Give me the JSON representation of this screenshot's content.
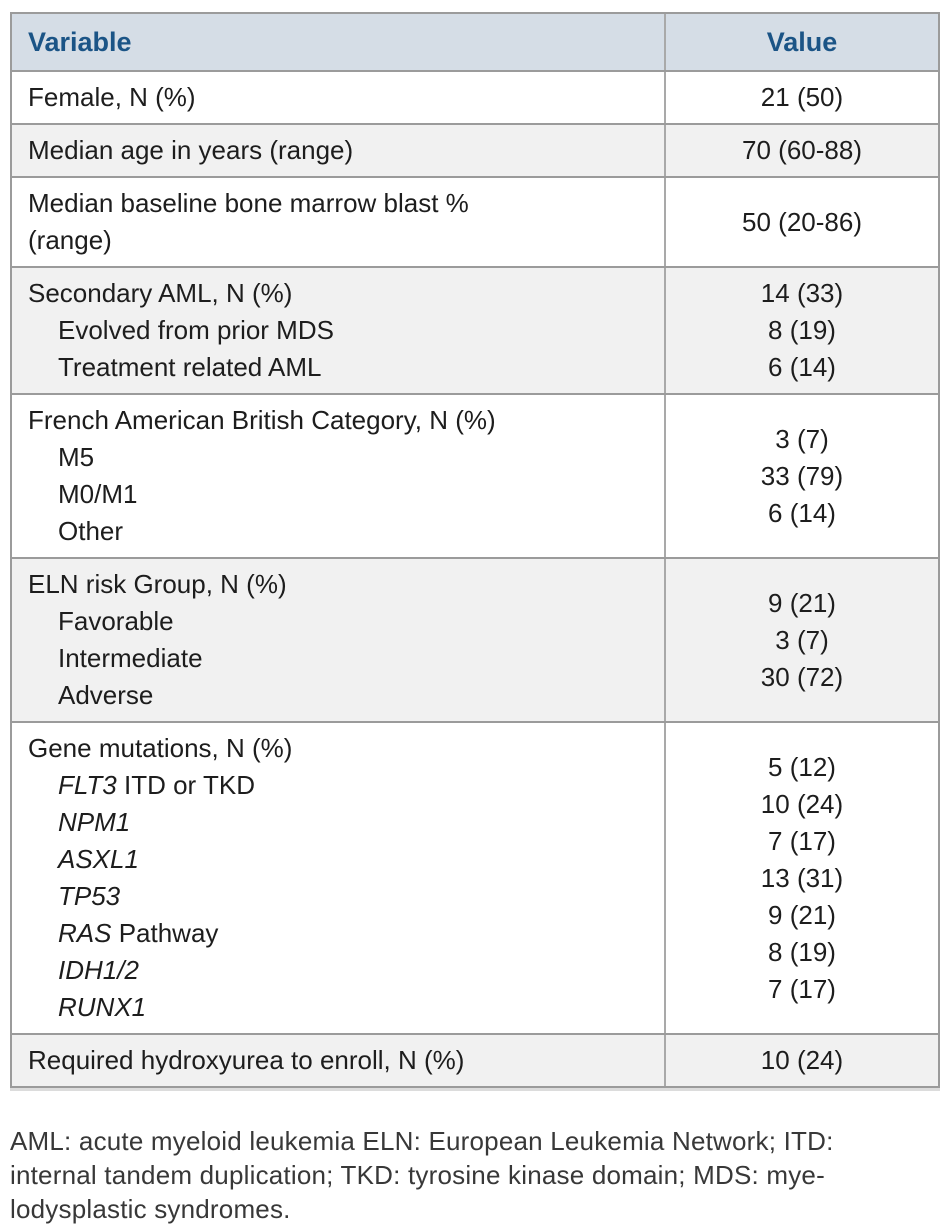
{
  "page": {
    "background": "#ffffff"
  },
  "table": {
    "header": {
      "variable": "Variable",
      "value": "Value"
    },
    "colors": {
      "header_bg": "#d5dde6",
      "header_text": "#1b5486",
      "row_bg": "#ffffff",
      "row_alt_bg": "#f1f1f1",
      "border": "#9b9b9b",
      "divider": "#a9a9a9",
      "text": "#1d1d1d"
    },
    "rows": [
      {
        "shaded": false,
        "lines": [
          {
            "indent": false,
            "segments": [
              {
                "text": "Female, N (%)",
                "italic": false
              }
            ]
          }
        ],
        "values": [
          "21 (50)"
        ]
      },
      {
        "shaded": true,
        "lines": [
          {
            "indent": false,
            "segments": [
              {
                "text": "Median age in years (range)",
                "italic": false
              }
            ]
          }
        ],
        "values": [
          "70 (60-88)"
        ]
      },
      {
        "shaded": false,
        "lines": [
          {
            "indent": false,
            "segments": [
              {
                "text": "Median baseline bone marrow blast %",
                "italic": false
              }
            ]
          },
          {
            "indent": false,
            "segments": [
              {
                "text": "(range)",
                "italic": false
              }
            ]
          }
        ],
        "values": [
          "50 (20-86)"
        ]
      },
      {
        "shaded": true,
        "lines": [
          {
            "indent": false,
            "segments": [
              {
                "text": "Secondary AML, N (%)",
                "italic": false
              }
            ]
          },
          {
            "indent": true,
            "segments": [
              {
                "text": "Evolved from prior MDS",
                "italic": false
              }
            ]
          },
          {
            "indent": true,
            "segments": [
              {
                "text": "Treatment related AML",
                "italic": false
              }
            ]
          }
        ],
        "values": [
          "14 (33)",
          "8 (19)",
          "6 (14)"
        ]
      },
      {
        "shaded": false,
        "lines": [
          {
            "indent": false,
            "segments": [
              {
                "text": "French American British Category, N (%)",
                "italic": false
              }
            ]
          },
          {
            "indent": true,
            "segments": [
              {
                "text": "M5",
                "italic": false
              }
            ]
          },
          {
            "indent": true,
            "segments": [
              {
                "text": "M0/M1",
                "italic": false
              }
            ]
          },
          {
            "indent": true,
            "segments": [
              {
                "text": "Other",
                "italic": false
              }
            ]
          }
        ],
        "values": [
          "3 (7)",
          "33 (79)",
          "6 (14)"
        ]
      },
      {
        "shaded": true,
        "lines": [
          {
            "indent": false,
            "segments": [
              {
                "text": "ELN risk Group, N (%)",
                "italic": false
              }
            ]
          },
          {
            "indent": true,
            "segments": [
              {
                "text": "Favorable",
                "italic": false
              }
            ]
          },
          {
            "indent": true,
            "segments": [
              {
                "text": "Intermediate",
                "italic": false
              }
            ]
          },
          {
            "indent": true,
            "segments": [
              {
                "text": "Adverse",
                "italic": false
              }
            ]
          }
        ],
        "values": [
          "9 (21)",
          "3 (7)",
          "30 (72)"
        ]
      },
      {
        "shaded": false,
        "lines": [
          {
            "indent": false,
            "segments": [
              {
                "text": "Gene mutations, N (%)",
                "italic": false
              }
            ]
          },
          {
            "indent": true,
            "segments": [
              {
                "text": "FLT3",
                "italic": true
              },
              {
                "text": " ITD or TKD",
                "italic": false
              }
            ]
          },
          {
            "indent": true,
            "segments": [
              {
                "text": "NPM1",
                "italic": true
              }
            ]
          },
          {
            "indent": true,
            "segments": [
              {
                "text": "ASXL1",
                "italic": true
              }
            ]
          },
          {
            "indent": true,
            "segments": [
              {
                "text": "TP53",
                "italic": true
              }
            ]
          },
          {
            "indent": true,
            "segments": [
              {
                "text": "RAS",
                "italic": true
              },
              {
                "text": " Pathway",
                "italic": false
              }
            ]
          },
          {
            "indent": true,
            "segments": [
              {
                "text": "IDH1/2",
                "italic": true
              }
            ]
          },
          {
            "indent": true,
            "segments": [
              {
                "text": "RUNX1",
                "italic": true
              }
            ]
          }
        ],
        "values": [
          "5 (12)",
          "10 (24)",
          "7 (17)",
          "13 (31)",
          "9 (21)",
          "8 (19)",
          "7 (17)"
        ]
      },
      {
        "shaded": true,
        "lines": [
          {
            "indent": false,
            "segments": [
              {
                "text": "Required hydroxyurea to enroll, N (%)",
                "italic": false
              }
            ]
          }
        ],
        "values": [
          "10 (24)"
        ]
      }
    ]
  },
  "footnote": {
    "lines": [
      "AML: acute myeloid leukemia ELN: European Leukemia Network; ITD:",
      "internal tandem duplication; TKD: tyrosine kinase domain; MDS: mye-",
      "lodysplastic syndromes."
    ]
  }
}
